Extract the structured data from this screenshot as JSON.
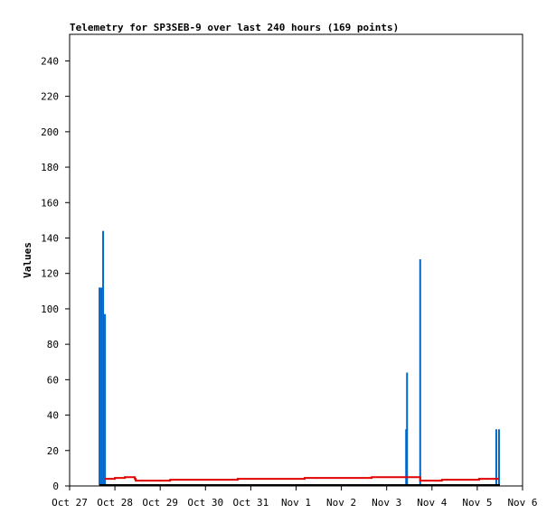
{
  "chart_data": {
    "type": "line",
    "title": "Telemetry for SP3SEB-9 over last 240 hours (169 points)",
    "y_label": "Values",
    "xlim": [
      0,
      10
    ],
    "xticks": [
      {
        "value": 0,
        "label": "Oct 27"
      },
      {
        "value": 1,
        "label": "Oct 28"
      },
      {
        "value": 2,
        "label": "Oct 29"
      },
      {
        "value": 3,
        "label": "Oct 30"
      },
      {
        "value": 4,
        "label": "Oct 31"
      },
      {
        "value": 5,
        "label": "Nov 1"
      },
      {
        "value": 6,
        "label": "Nov 2"
      },
      {
        "value": 7,
        "label": "Nov 3"
      },
      {
        "value": 8,
        "label": "Nov 4"
      },
      {
        "value": 9,
        "label": "Nov 5"
      },
      {
        "value": 10,
        "label": "Nov 6"
      }
    ],
    "ylim": [
      0,
      255
    ],
    "yticks": [
      0,
      20,
      40,
      60,
      80,
      100,
      120,
      140,
      160,
      180,
      200,
      220,
      240
    ],
    "series": [
      {
        "color": "#0066cc",
        "style": "impulse",
        "x": [
          0.66,
          0.7,
          0.74,
          0.78,
          7.43,
          7.45,
          7.74,
          9.42,
          9.48
        ],
        "values": [
          112,
          112,
          144,
          97,
          32,
          64,
          128,
          32,
          32
        ]
      },
      {
        "color": "#e00000",
        "style": "line",
        "x": [
          0.78,
          1.0,
          1.0,
          1.22,
          1.22,
          1.44,
          1.44,
          1.46,
          1.46,
          2.22,
          2.22,
          3.71,
          3.71,
          5.19,
          5.19,
          6.67,
          6.67,
          7.74,
          7.74,
          8.22,
          8.22,
          9.04,
          9.04,
          9.48
        ],
        "values": [
          4,
          4,
          4.5,
          4.5,
          5,
          5,
          4,
          4,
          3,
          3,
          3.5,
          3.5,
          4,
          4,
          4.5,
          4.5,
          5,
          5,
          3,
          3,
          3.5,
          3.5,
          4,
          4
        ]
      },
      {
        "color": "#000000",
        "style": "line",
        "x": [
          0.66,
          9.5
        ],
        "values": [
          0.5,
          0.5
        ]
      }
    ]
  }
}
